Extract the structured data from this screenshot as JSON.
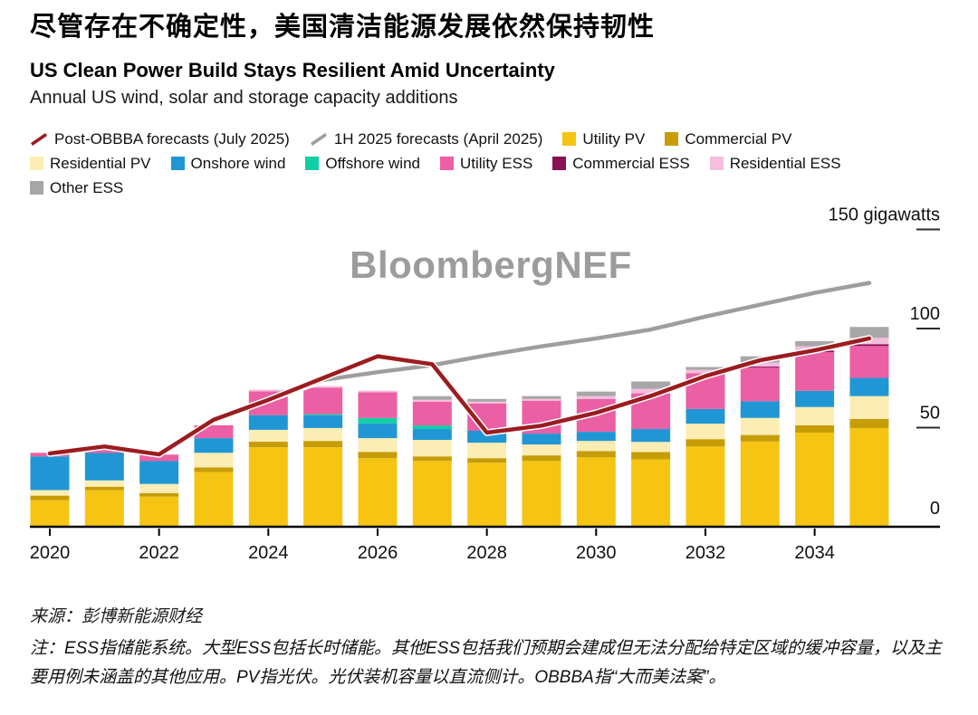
{
  "header": {
    "title_zh": "尽管存在不确定性，美国清洁能源发展依然保持韧性",
    "title_en": "US Clean Power Build Stays Resilient Amid Uncertainty",
    "subtitle": "Annual US wind, solar and storage capacity additions"
  },
  "watermark": "BloombergNEF",
  "legend": {
    "rows": [
      [
        {
          "label": "Post-OBBBA forecasts (July 2025)",
          "color": "#9B1C1F",
          "swatch": "line"
        },
        {
          "label": "1H 2025 forecasts (April 2025)",
          "color": "#9E9E9E",
          "swatch": "line"
        },
        {
          "label": "Utility PV",
          "color": "#F6C513",
          "swatch": "box"
        },
        {
          "label": "Commercial PV",
          "color": "#C69D07",
          "swatch": "box"
        }
      ],
      [
        {
          "label": "Residential PV",
          "color": "#FBEDB3",
          "swatch": "box"
        },
        {
          "label": "Onshore wind",
          "color": "#2097D4",
          "swatch": "box"
        },
        {
          "label": "Offshore wind",
          "color": "#12CEA5",
          "swatch": "box"
        },
        {
          "label": "Utility ESS",
          "color": "#EB5FA4",
          "swatch": "box"
        },
        {
          "label": "Commercial ESS",
          "color": "#8A1056",
          "swatch": "box"
        },
        {
          "label": "Residential ESS",
          "color": "#F5BEDC",
          "swatch": "box"
        }
      ],
      [
        {
          "label": "Other ESS",
          "color": "#A7A7A7",
          "swatch": "box"
        }
      ]
    ]
  },
  "footer": {
    "source": "来源：彭博新能源财经",
    "note": "注：ESS指储能系统。大型ESS包括长时储能。其他ESS包括我们预期会建成但无法分配给特定区域的缓冲容量，以及主要用例未涵盖的其他应用。PV指光伏。光伏装机容量以直流侧计。OBBBA指“大而美法案”。"
  },
  "chart_data": {
    "type": "bar",
    "stacked": true,
    "title": "US Clean Power Build Stays Resilient Amid Uncertainty",
    "subtitle": "Annual US wind, solar and storage capacity additions",
    "unit": "gigawatts",
    "ylim": [
      0,
      150
    ],
    "yticks": [
      0,
      50,
      100,
      150
    ],
    "y_top_label": "150 gigawatts",
    "grid": false,
    "legend_position": "top",
    "categories": [
      2020,
      2021,
      2022,
      2023,
      2024,
      2025,
      2026,
      2027,
      2028,
      2029,
      2030,
      2031,
      2032,
      2033,
      2034,
      2035
    ],
    "xticks": [
      2020,
      2022,
      2024,
      2026,
      2028,
      2030,
      2032,
      2034
    ],
    "series": [
      {
        "name": "Utility PV",
        "color": "#F6C513",
        "values": [
          13.4,
          18.4,
          15.2,
          27.6,
          40.1,
          40.1,
          34.6,
          33.2,
          32.3,
          33.2,
          35.0,
          34.0,
          40.5,
          43.0,
          47.5,
          49.8
        ]
      },
      {
        "name": "Commercial PV",
        "color": "#C69D07",
        "values": [
          2.3,
          1.8,
          1.8,
          2.3,
          2.8,
          3.2,
          3.2,
          2.3,
          2.3,
          2.8,
          3.2,
          3.7,
          3.7,
          3.3,
          3.7,
          4.6
        ]
      },
      {
        "name": "Residential PV",
        "color": "#FBEDB3",
        "values": [
          2.8,
          3.2,
          4.6,
          7.4,
          6.0,
          6.5,
          6.9,
          8.3,
          7.8,
          5.5,
          5.1,
          5.1,
          7.8,
          8.6,
          9.2,
          11.5
        ]
      },
      {
        "name": "Onshore wind",
        "color": "#2097D4",
        "values": [
          17.0,
          13.8,
          11.5,
          7.4,
          7.4,
          6.5,
          7.4,
          5.5,
          6.0,
          5.5,
          4.6,
          6.5,
          7.4,
          8.4,
          8.2,
          9.2
        ]
      },
      {
        "name": "Offshore wind",
        "color": "#12CEA5",
        "values": [
          0,
          0,
          0,
          0,
          0,
          0.5,
          2.8,
          1.8,
          0,
          0,
          0,
          0,
          0,
          0,
          0,
          0
        ]
      },
      {
        "name": "Utility ESS",
        "color": "#EB5FA4",
        "values": [
          1.8,
          2.2,
          3.3,
          6.5,
          12.0,
          13.3,
          12.9,
          12.0,
          13.8,
          16.6,
          16.6,
          18.0,
          18.0,
          17.0,
          19.5,
          16.1
        ]
      },
      {
        "name": "Commercial ESS",
        "color": "#8A1056",
        "values": [
          0,
          0,
          0,
          0,
          0,
          0,
          0,
          0,
          0,
          0,
          0,
          0,
          0,
          0.5,
          0.7,
          0.9
        ]
      },
      {
        "name": "Residential ESS",
        "color": "#F5BEDC",
        "values": [
          0,
          0,
          0,
          0,
          0.9,
          0.9,
          0.9,
          0.9,
          0.9,
          0.9,
          1.4,
          2.3,
          1.8,
          2.0,
          2.3,
          3.2
        ]
      },
      {
        "name": "Other ESS",
        "color": "#A7A7A7",
        "values": [
          0,
          0,
          0,
          0,
          0,
          0,
          0,
          1.9,
          1.4,
          1.4,
          2.3,
          3.7,
          1.4,
          3.2,
          2.5,
          5.5
        ]
      }
    ],
    "lines": [
      {
        "name": "Post-OBBBA forecasts (July 2025)",
        "color": "#9B1C1F",
        "values": [
          37,
          40.5,
          36.5,
          54,
          64,
          75,
          86,
          82,
          47.5,
          51,
          57.5,
          66,
          76,
          84,
          89,
          95
        ]
      },
      {
        "name": "1H 2025 forecasts (April 2025)",
        "color": "#9E9E9E",
        "values": [
          null,
          null,
          null,
          null,
          64,
          74,
          78,
          81.5,
          86.5,
          91,
          95,
          99.5,
          106,
          112,
          118,
          123
        ]
      }
    ]
  }
}
